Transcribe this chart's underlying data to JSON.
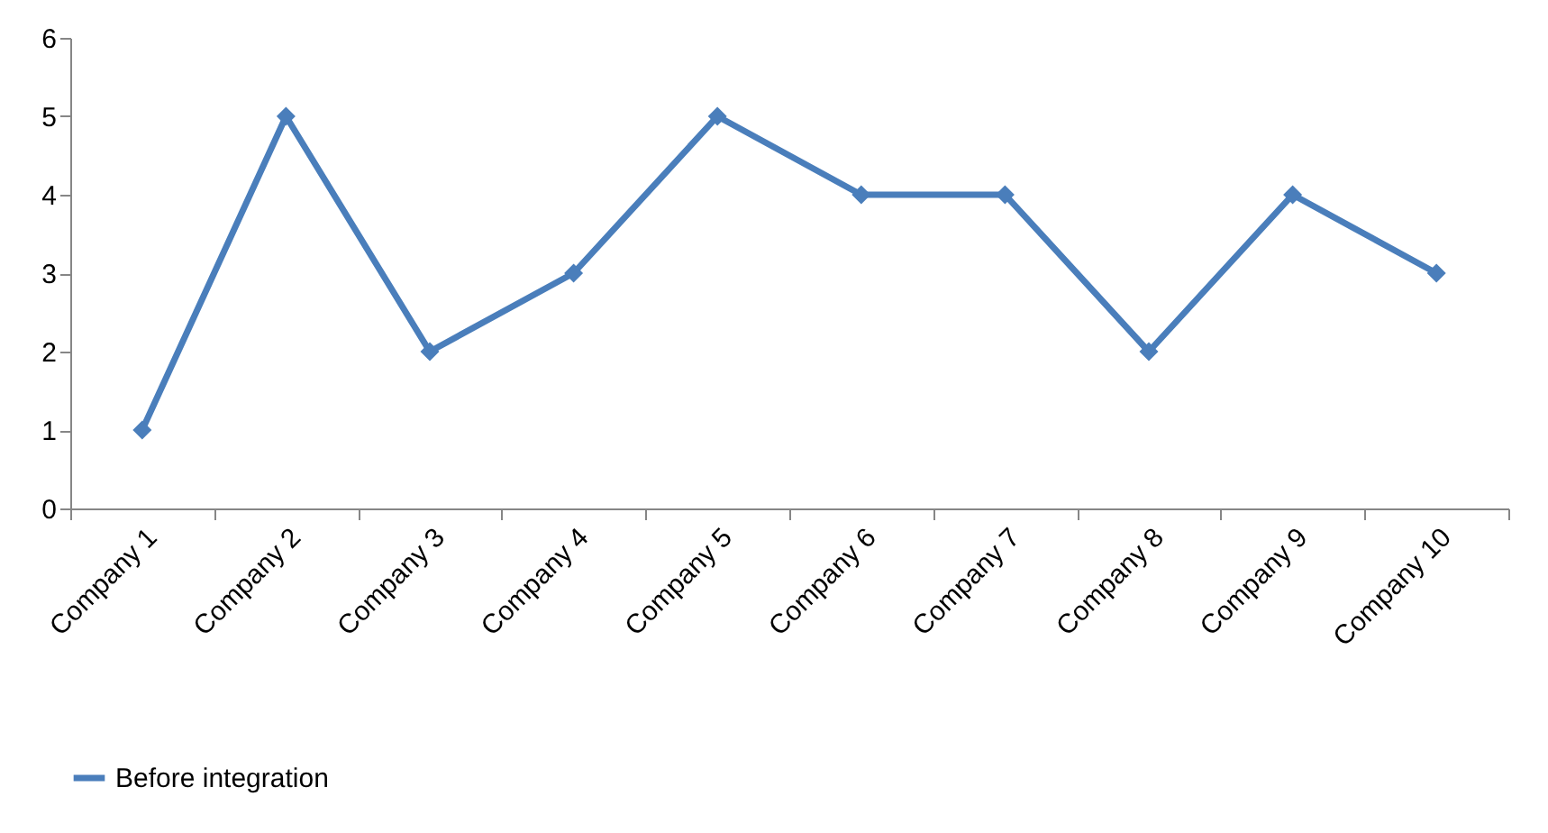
{
  "chart_data": {
    "type": "line",
    "categories": [
      "Company 1",
      "Company 2",
      "Company 3",
      "Company 4",
      "Company 5",
      "Company 6",
      "Company 7",
      "Company 8",
      "Company 9",
      "Company 10"
    ],
    "series": [
      {
        "name": "Before integration",
        "color": "#4a7ebb",
        "values": [
          1,
          5,
          2,
          3,
          5,
          4,
          4,
          2,
          4,
          3
        ]
      }
    ],
    "ylim": [
      0,
      6
    ],
    "yticks": [
      0,
      1,
      2,
      3,
      4,
      5,
      6
    ],
    "grid": false,
    "legend": "bottom",
    "marker": "diamond",
    "line_style": "solid"
  }
}
